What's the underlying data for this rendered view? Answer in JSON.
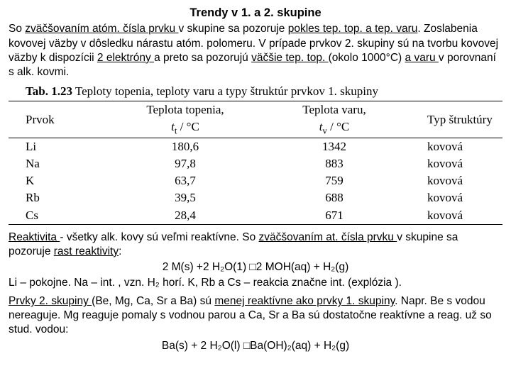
{
  "title": "Trendy v 1. a 2. skupine",
  "p1_a": "So ",
  "p1_u1": "zväčšovaním atóm. čísla prvku ",
  "p1_b": "v skupine sa pozoruje ",
  "p1_u2": "pokles tep. top. a tep. varu",
  "p1_c": ". Zoslabenia kovovej väzby v dôsledku nárastu atóm. polomeru. V prípade prvkov 2. skupiny sú na tvorbu kovovej väzby k dispozícii ",
  "p1_u3": "2 elektróny ",
  "p1_d": "a preto sa pozorujú ",
  "p1_u4": "väčšie tep. top. ",
  "p1_e": "(okolo 1000°C) ",
  "p1_u5": "a varu ",
  "p1_f": "v porovnaní s alk. kovmi.",
  "tabcap_b": "Tab. 1.23",
  "tabcap_rest": " Teploty topenia, teploty varu a typy štruktúr prvkov 1. skupiny",
  "h1": "Prvok",
  "h2a": "Teplota topenia,",
  "h2b_i": "t",
  "h2b_sub": "t",
  "h2b_rest": " / °C",
  "h3a": "Teplota varu,",
  "h3b_i": "t",
  "h3b_sub": "v",
  "h3b_rest": " / °C",
  "h4": "Typ štruktúry",
  "rows": [
    {
      "e": "Li",
      "tt": "180,6",
      "tv": "1342",
      "ty": "kovová"
    },
    {
      "e": "Na",
      "tt": "97,8",
      "tv": "883",
      "ty": "kovová"
    },
    {
      "e": "K",
      "tt": "63,7",
      "tv": "759",
      "ty": "kovová"
    },
    {
      "e": "Rb",
      "tt": "39,5",
      "tv": "688",
      "ty": "kovová"
    },
    {
      "e": "Cs",
      "tt": "28,4",
      "tv": "671",
      "ty": "kovová"
    }
  ],
  "p2_u1": "Reaktivita ",
  "p2_a": "- všetky alk. kovy sú veľmi reaktívne. So ",
  "p2_u2": "zväčšovaním at. čísla prvku ",
  "p2_b": "v skupine sa pozoruje ",
  "p2_u3": "rast reaktivity",
  "p2_c": ":",
  "eq1": "2 M(s) +2 H₂O(1) □2 MOH(aq) + H₂(g)",
  "p3": "Li – pokojne. Na – int. , vzn. H₂ horí.  K, Rb a Cs – reakcia značne int. (explózia ).",
  "p4_u1": "Prvky 2. skupiny ",
  "p4_a": "(Be, Mg, Ca, Sr a Ba) sú ",
  "p4_u2": "menej reaktívne ako prvky 1. skupiny",
  "p4_b": ". Napr. Be s vodou nereaguje. Mg reaguje pomaly s vodnou parou a Ca, Sr a Ba sú dostatočne reaktívne a reag. už so stud. vodou:",
  "eq2": "Ba(s) + 2 H₂O(l) □Ba(OH)₂(aq) + H₂(g)"
}
